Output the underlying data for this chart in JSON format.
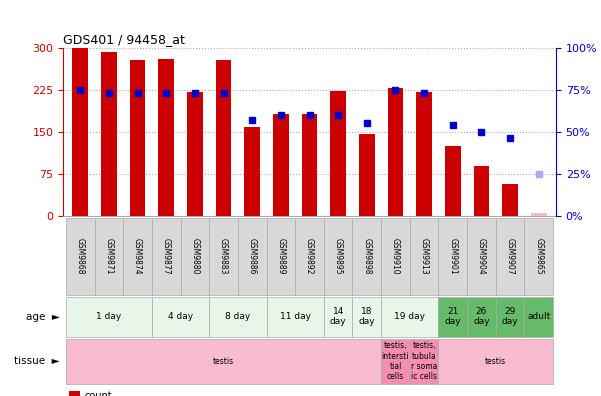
{
  "title": "GDS401 / 94458_at",
  "samples": [
    "GSM9868",
    "GSM9871",
    "GSM9874",
    "GSM9877",
    "GSM9880",
    "GSM9883",
    "GSM9886",
    "GSM9889",
    "GSM9892",
    "GSM9895",
    "GSM9898",
    "GSM9910",
    "GSM9913",
    "GSM9901",
    "GSM9904",
    "GSM9907",
    "GSM9865"
  ],
  "counts": [
    300,
    292,
    277,
    280,
    220,
    277,
    158,
    181,
    182,
    222,
    145,
    228,
    220,
    125,
    88,
    57,
    5
  ],
  "percentile_ranks": [
    75,
    73,
    73,
    73,
    73,
    73,
    57,
    60,
    60,
    60,
    55,
    75,
    73,
    54,
    50,
    46,
    25
  ],
  "absent": [
    false,
    false,
    false,
    false,
    false,
    false,
    false,
    false,
    false,
    false,
    false,
    false,
    false,
    false,
    false,
    false,
    true
  ],
  "ylim_left": [
    0,
    300
  ],
  "ylim_right": [
    0,
    100
  ],
  "yticks_left": [
    0,
    75,
    150,
    225,
    300
  ],
  "yticks_right": [
    0,
    25,
    50,
    75,
    100
  ],
  "age_groups": [
    {
      "label": "1 day",
      "start": 0,
      "end": 2,
      "color": "#e8f5e9"
    },
    {
      "label": "4 day",
      "start": 3,
      "end": 4,
      "color": "#e8f5e9"
    },
    {
      "label": "8 day",
      "start": 5,
      "end": 6,
      "color": "#e8f5e9"
    },
    {
      "label": "11 day",
      "start": 7,
      "end": 8,
      "color": "#e8f5e9"
    },
    {
      "label": "14\nday",
      "start": 9,
      "end": 9,
      "color": "#e8f5e9"
    },
    {
      "label": "18\nday",
      "start": 10,
      "end": 10,
      "color": "#e8f5e9"
    },
    {
      "label": "19 day",
      "start": 11,
      "end": 12,
      "color": "#e8f5e9"
    },
    {
      "label": "21\nday",
      "start": 13,
      "end": 13,
      "color": "#66bb6a"
    },
    {
      "label": "26\nday",
      "start": 14,
      "end": 14,
      "color": "#66bb6a"
    },
    {
      "label": "29\nday",
      "start": 15,
      "end": 15,
      "color": "#66bb6a"
    },
    {
      "label": "adult",
      "start": 16,
      "end": 16,
      "color": "#66bb6a"
    }
  ],
  "tissue_groups": [
    {
      "label": "testis",
      "start": 0,
      "end": 10,
      "color": "#f8bbd0"
    },
    {
      "label": "testis,\nintersti\ntial\ncells",
      "start": 11,
      "end": 11,
      "color": "#f48fb1"
    },
    {
      "label": "testis,\ntubula\nr soma\nic cells",
      "start": 12,
      "end": 12,
      "color": "#f48fb1"
    },
    {
      "label": "testis",
      "start": 13,
      "end": 16,
      "color": "#f8bbd0"
    }
  ],
  "bar_color_present": "#cc0000",
  "bar_color_absent": "#ffb6c1",
  "dot_color_present": "#0000cc",
  "dot_color_absent": "#aaaaee",
  "bg_color": "#ffffff",
  "grid_color": "#aaaaaa",
  "left_axis_color": "#cc0000",
  "right_axis_color": "#0000cc"
}
